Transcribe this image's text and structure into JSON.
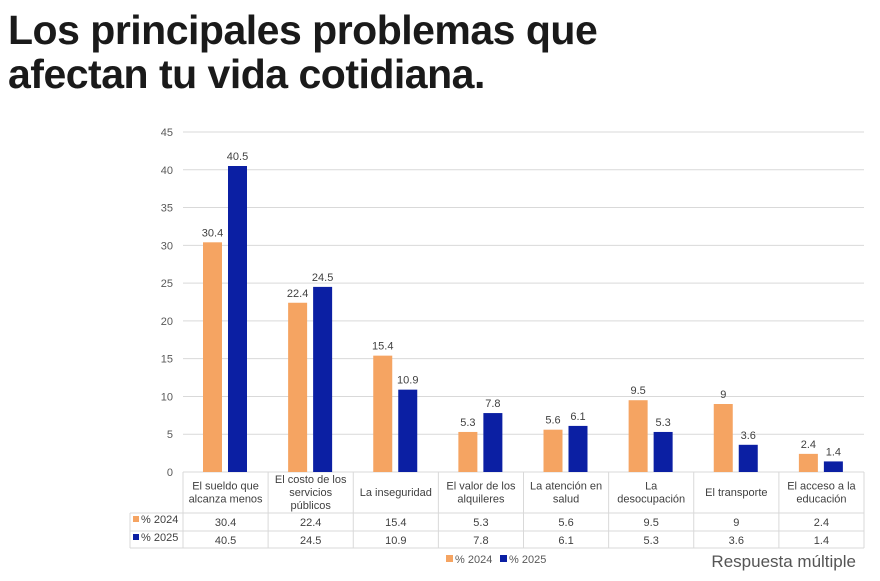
{
  "title_lines": [
    "Los principales problemas que",
    "afectan tu vida cotidiana."
  ],
  "note": "Respuesta múltiple",
  "chart_data": {
    "type": "bar",
    "categories": [
      [
        "El sueldo que",
        "alcanza menos"
      ],
      [
        "El costo de los",
        "servicios",
        "públicos"
      ],
      [
        "La inseguridad"
      ],
      [
        "El valor de los",
        "alquileres"
      ],
      [
        "La atención en",
        "salud"
      ],
      [
        "La",
        "desocupación"
      ],
      [
        "El transporte"
      ],
      [
        "El acceso a la",
        "educación"
      ]
    ],
    "series": [
      {
        "name": "% 2024",
        "color": "#F5A462",
        "values": [
          30.4,
          22.4,
          15.4,
          5.3,
          5.6,
          9.5,
          9,
          2.4
        ]
      },
      {
        "name": "% 2025",
        "color": "#0B1FA3",
        "values": [
          40.5,
          24.5,
          10.9,
          7.8,
          6.1,
          5.3,
          3.6,
          1.4
        ]
      }
    ],
    "ylim": [
      0,
      45
    ],
    "yticks": [
      0,
      5,
      10,
      15,
      20,
      25,
      30,
      35,
      40,
      45
    ],
    "grid": true,
    "data_table": true,
    "legend": "bottom"
  }
}
